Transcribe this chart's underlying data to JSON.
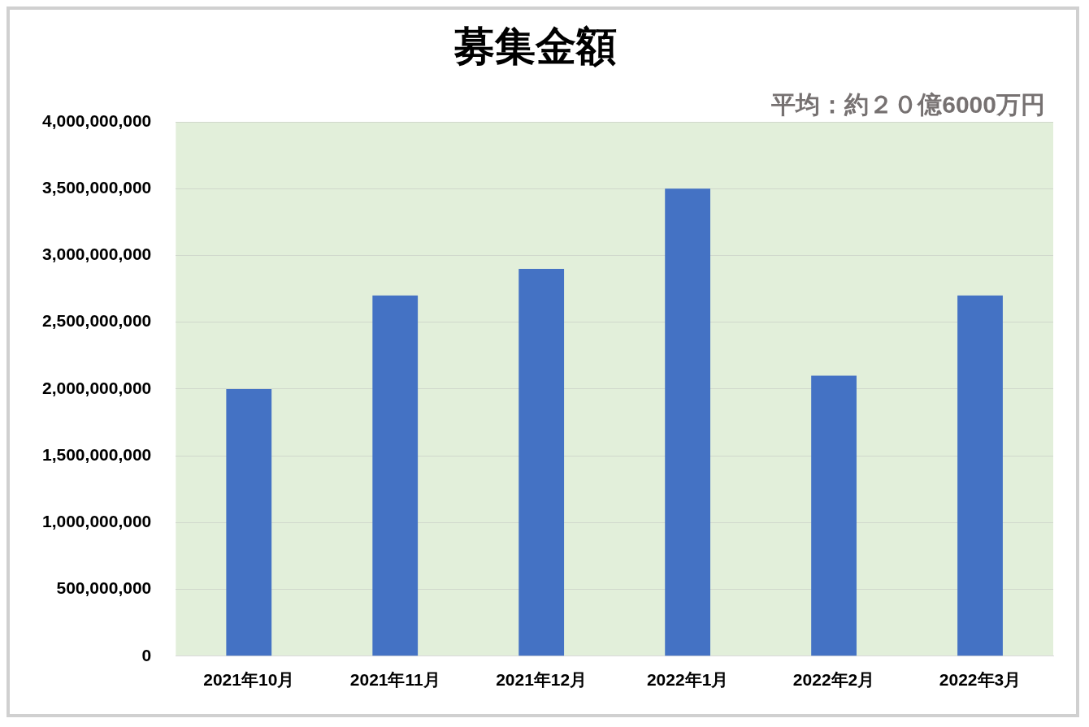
{
  "chart_data": {
    "type": "bar",
    "title": "募集金額",
    "annotations": [
      "平均：約２０億6000万円"
    ],
    "categories": [
      "2021年10月",
      "2021年11月",
      "2021年12月",
      "2022年1月",
      "2022年2月",
      "2022年3月"
    ],
    "values": [
      2000000000,
      2700000000,
      2900000000,
      3500000000,
      2100000000,
      2700000000
    ],
    "color": "#4472c4",
    "ylim": [
      0,
      4000000000
    ],
    "yticks": [
      {
        "value": 0,
        "label": "0"
      },
      {
        "value": 500000000,
        "label": "500,000,000"
      },
      {
        "value": 1000000000,
        "label": "1,000,000,000"
      },
      {
        "value": 1500000000,
        "label": "1,500,000,000"
      },
      {
        "value": 2000000000,
        "label": "2,000,000,000"
      },
      {
        "value": 2500000000,
        "label": "2,500,000,000"
      },
      {
        "value": 3000000000,
        "label": "3,000,000,000"
      },
      {
        "value": 3500000000,
        "label": "3,500,000,000"
      },
      {
        "value": 4000000000,
        "label": "4,000,000,000"
      }
    ],
    "grid": "y",
    "legend": false
  }
}
